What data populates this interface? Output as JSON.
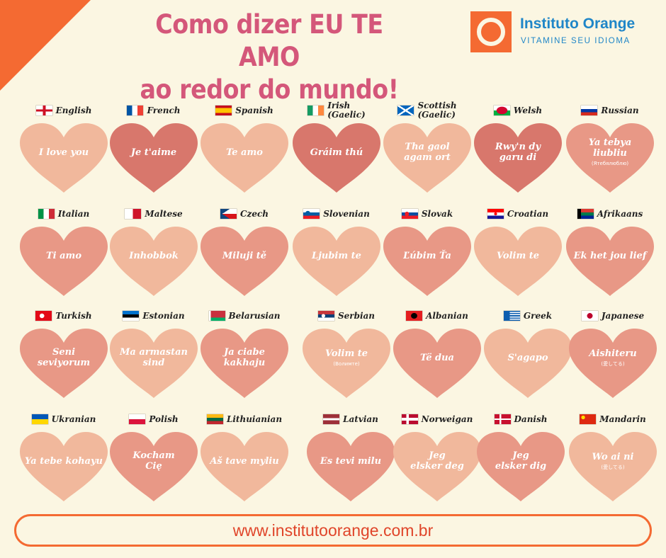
{
  "title": {
    "line1": "Como dizer EU TE AMO",
    "line2": "ao redor do mundo!"
  },
  "logo": {
    "name": "Instituto Orange",
    "tagline": "VITAMINE SEU IDIOMA",
    "color": "#1f86c8",
    "accent": "#f46a32"
  },
  "website": "www.institutoorange.com.br",
  "heart_colors": {
    "light": "#f1b89c",
    "medium": "#e89886",
    "dark": "#d8776c"
  },
  "rows": [
    [
      {
        "language": "English",
        "phrase": "I love you",
        "flag": "uk",
        "shade": "light"
      },
      {
        "language": "French",
        "phrase": "Je t'aime",
        "flag": "fr",
        "shade": "dark"
      },
      {
        "language": "Spanish",
        "phrase": "Te amo",
        "flag": "es",
        "shade": "light"
      },
      {
        "language": "Irish\n(Gaelic)",
        "phrase": "Gráim thú",
        "flag": "ie",
        "shade": "dark"
      },
      {
        "language": "Scottish\n(Gaelic)",
        "phrase": "Tha gaol\nagam ort",
        "flag": "sco",
        "shade": "light"
      },
      {
        "language": "Welsh",
        "phrase": "Rwy'n dy\ngaru di",
        "flag": "wal",
        "shade": "dark"
      },
      {
        "language": "Russian",
        "phrase": "Ya tebya\nliubliu",
        "sub": "(Ятебялюблю)",
        "flag": "ru",
        "shade": "medium"
      }
    ],
    [
      {
        "language": "Italian",
        "phrase": "Ti amo",
        "flag": "it",
        "shade": "medium"
      },
      {
        "language": "Maltese",
        "phrase": "Inhobbok",
        "flag": "mt",
        "shade": "light"
      },
      {
        "language": "Czech",
        "phrase": "Miluji tě",
        "flag": "cz",
        "shade": "medium"
      },
      {
        "language": "Slovenian",
        "phrase": "Ljubim te",
        "flag": "si",
        "shade": "light"
      },
      {
        "language": "Slovak",
        "phrase": "Ľúbim Ťa",
        "flag": "sk",
        "shade": "medium"
      },
      {
        "language": "Croatian",
        "phrase": "Volim te",
        "flag": "hr",
        "shade": "light"
      },
      {
        "language": "Afrikaans",
        "phrase": "Ek het jou lief",
        "flag": "za",
        "shade": "medium"
      }
    ],
    [
      {
        "language": "Turkish",
        "phrase": "Seni\nseviyorum",
        "flag": "tr",
        "shade": "medium"
      },
      {
        "language": "Estonian",
        "phrase": "Ma armastan\nsind",
        "flag": "ee",
        "shade": "light"
      },
      {
        "language": "Belarusian",
        "phrase": "Ja ciabe\nkakhaju",
        "flag": "by",
        "shade": "medium"
      },
      {
        "language": "Serbian",
        "phrase": "Volim te",
        "sub": "(Волимте)",
        "flag": "rs",
        "shade": "light"
      },
      {
        "language": "Albanian",
        "phrase": "Të dua",
        "flag": "al",
        "shade": "medium"
      },
      {
        "language": "Greek",
        "phrase": "S'agapo",
        "flag": "gr",
        "shade": "light"
      },
      {
        "language": "Japanese",
        "phrase": "Aishiteru",
        "sub": "(愛してる)",
        "flag": "jp",
        "shade": "medium"
      }
    ],
    [
      {
        "language": "Ukranian",
        "phrase": "Ya tebe kohayu",
        "flag": "ua",
        "shade": "light"
      },
      {
        "language": "Polish",
        "phrase": "Kocham\nCię",
        "flag": "pl",
        "shade": "medium"
      },
      {
        "language": "Lithuianian",
        "phrase": "Aš tave myliu",
        "flag": "lt",
        "shade": "light"
      },
      {
        "language": "Latvian",
        "phrase": "Es tevi milu",
        "flag": "lv",
        "shade": "medium"
      },
      {
        "language": "Norweigan",
        "phrase": "Jeg\nelsker deg",
        "flag": "no",
        "shade": "light"
      },
      {
        "language": "Danish",
        "phrase": "Jeg\nelsker dig",
        "flag": "dk",
        "shade": "medium"
      },
      {
        "language": "Mandarin",
        "phrase": "Wo ai ni",
        "sub": "(愛してる)",
        "flag": "cn",
        "shade": "light"
      }
    ]
  ]
}
